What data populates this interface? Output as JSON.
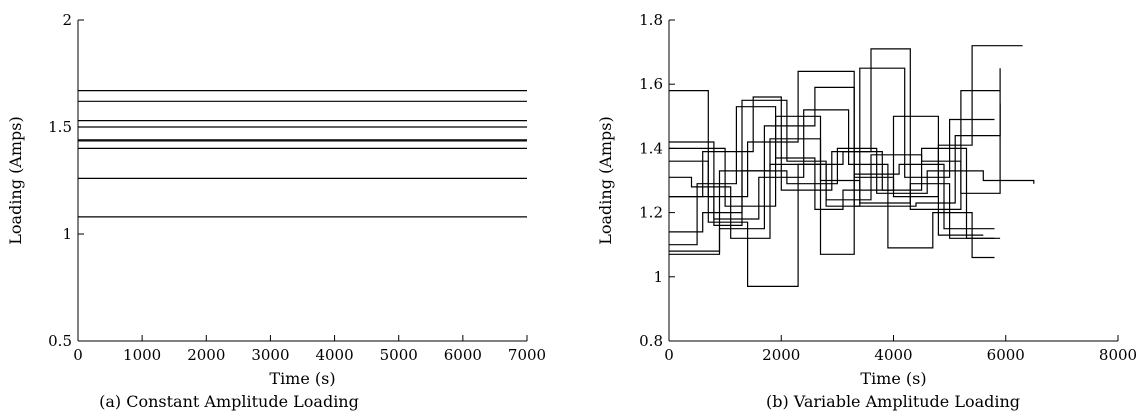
{
  "chart_data": [
    {
      "type": "line",
      "caption": "(a) Constant Amplitude Loading",
      "xlabel": "Time (s)",
      "ylabel": "Loading (Amps)",
      "xlim": [
        0,
        7000
      ],
      "ylim": [
        0.5,
        2
      ],
      "xticks": [
        0,
        1000,
        2000,
        3000,
        4000,
        5000,
        6000,
        7000
      ],
      "yticks": [
        0.5,
        1,
        1.5,
        2
      ],
      "xtick_labels": [
        "0",
        "1000",
        "2000",
        "3000",
        "4000",
        "5000",
        "6000",
        "7000"
      ],
      "ytick_labels": [
        "0.5",
        "1",
        "1.5",
        "2"
      ],
      "grid": false,
      "series": [
        {
          "x": [
            0,
            7000
          ],
          "y": [
            1.67,
            1.67
          ]
        },
        {
          "x": [
            0,
            7000
          ],
          "y": [
            1.62,
            1.62
          ]
        },
        {
          "x": [
            0,
            7000
          ],
          "y": [
            1.53,
            1.53
          ]
        },
        {
          "x": [
            0,
            7000
          ],
          "y": [
            1.5,
            1.5
          ]
        },
        {
          "x": [
            0,
            7000
          ],
          "y": [
            1.44,
            1.44
          ]
        },
        {
          "x": [
            0,
            7000
          ],
          "y": [
            1.435,
            1.435
          ]
        },
        {
          "x": [
            0,
            7000
          ],
          "y": [
            1.4,
            1.4
          ]
        },
        {
          "x": [
            0,
            7000
          ],
          "y": [
            1.26,
            1.26
          ]
        },
        {
          "x": [
            0,
            7000
          ],
          "y": [
            1.08,
            1.08
          ]
        }
      ]
    },
    {
      "type": "line",
      "step": true,
      "caption": "(b) Variable Amplitude Loading",
      "xlabel": "Time (s)",
      "ylabel": "Loading (Amps)",
      "xlim": [
        0,
        8000
      ],
      "ylim": [
        0.8,
        1.8
      ],
      "xticks": [
        0,
        2000,
        4000,
        6000,
        8000
      ],
      "yticks": [
        0.8,
        1,
        1.2,
        1.4,
        1.6,
        1.8
      ],
      "xtick_labels": [
        "0",
        "2000",
        "4000",
        "6000",
        "8000"
      ],
      "ytick_labels": [
        "0.8",
        "1",
        "1.2",
        "1.4",
        "1.6",
        "1.8"
      ],
      "grid": false,
      "series": [
        {
          "x": [
            0,
            700,
            1400,
            2300,
            3300,
            4000,
            4800,
            5400,
            6300
          ],
          "y": [
            1.58,
            1.25,
            1.42,
            1.64,
            1.31,
            1.25,
            1.41,
            1.72,
            1.72
          ]
        },
        {
          "x": [
            0,
            800,
            1300,
            2100,
            2800,
            3400,
            4200,
            5000,
            5800
          ],
          "y": [
            1.42,
            1.16,
            1.55,
            1.36,
            1.22,
            1.65,
            1.31,
            1.49,
            1.49
          ]
        },
        {
          "x": [
            0,
            600,
            1500,
            2000,
            2900,
            3600,
            4300,
            5200,
            5900
          ],
          "y": [
            1.25,
            1.39,
            1.56,
            1.27,
            1.39,
            1.71,
            1.21,
            1.58,
            1.58
          ]
        },
        {
          "x": [
            0,
            900,
            1700,
            2600,
            3300,
            4400,
            5100,
            5900
          ],
          "y": [
            1.08,
            1.15,
            1.47,
            1.59,
            1.22,
            1.23,
            1.44,
            1.54
          ]
        },
        {
          "x": [
            0,
            500,
            1200,
            1900,
            2600,
            3100,
            4000,
            4800,
            5600
          ],
          "y": [
            1.1,
            1.29,
            1.53,
            1.37,
            1.21,
            1.27,
            1.5,
            1.13,
            1.13
          ]
        },
        {
          "x": [
            0,
            700,
            1400,
            2300,
            3100,
            3800,
            4500,
            5300,
            5900
          ],
          "y": [
            1.36,
            1.17,
            0.97,
            1.35,
            1.39,
            1.27,
            1.4,
            1.12,
            1.12
          ]
        },
        {
          "x": [
            0,
            400,
            1100,
            1800,
            2700,
            3300,
            4100,
            4900,
            5800
          ],
          "y": [
            1.31,
            1.28,
            1.12,
            1.43,
            1.07,
            1.32,
            1.35,
            1.15,
            1.15
          ]
        },
        {
          "x": [
            0,
            800,
            1600,
            2400,
            3200,
            3900,
            4700,
            5400,
            5800
          ],
          "y": [
            1.25,
            1.18,
            1.31,
            1.52,
            1.35,
            1.09,
            1.2,
            1.06,
            1.06
          ]
        },
        {
          "x": [
            0,
            900,
            1800,
            2800,
            3600,
            4500,
            5200,
            5900
          ],
          "y": [
            1.07,
            1.33,
            1.35,
            1.24,
            1.38,
            1.36,
            1.26,
            1.65
          ]
        },
        {
          "x": [
            0,
            600,
            1300,
            2100,
            3000,
            3700,
            4600,
            5600,
            6500
          ],
          "y": [
            1.14,
            1.2,
            1.33,
            1.29,
            1.4,
            1.26,
            1.33,
            1.3,
            1.29
          ]
        },
        {
          "x": [
            0,
            1000,
            1900,
            2700,
            3400,
            4300,
            5000,
            5800
          ],
          "y": [
            1.4,
            1.22,
            1.5,
            1.3,
            1.23,
            1.29,
            1.12,
            1.12
          ]
        }
      ]
    }
  ]
}
